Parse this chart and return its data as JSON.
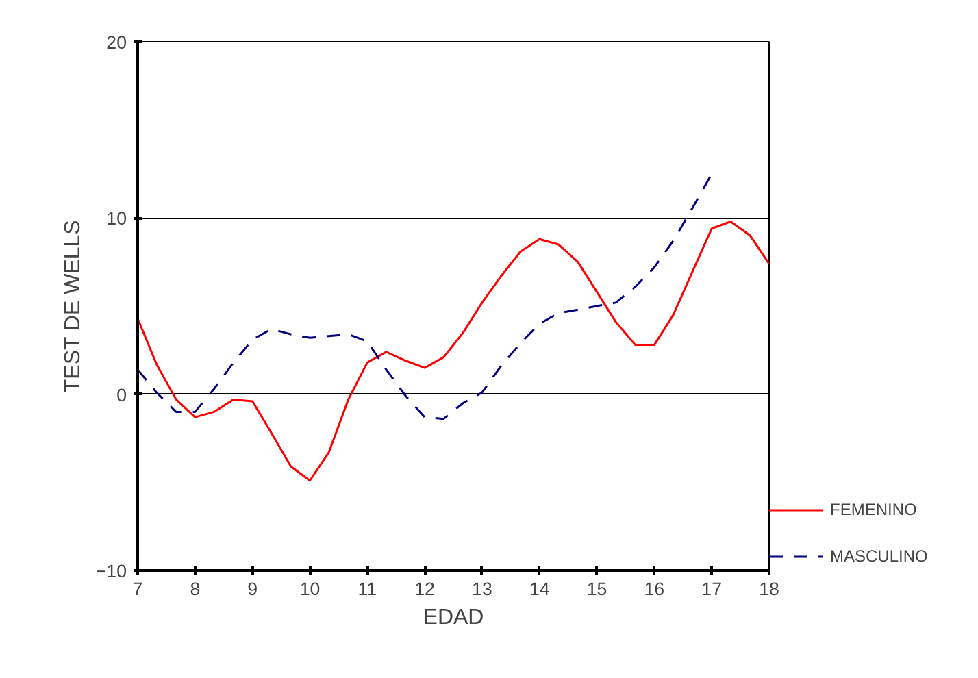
{
  "chart_data": {
    "type": "line",
    "xlabel": "EDAD",
    "ylabel": "TEST DE WELLS",
    "xlim": [
      7,
      18
    ],
    "xticks": [
      7,
      8,
      9,
      10,
      11,
      12,
      13,
      14,
      15,
      16,
      17,
      18
    ],
    "ylim": [
      -10,
      20
    ],
    "yticks": [
      -10,
      0,
      10,
      20
    ],
    "grid": "y",
    "legend": "right",
    "marker": "none",
    "series": [
      {
        "name": "FEMENINO",
        "color": "#ff0000",
        "line_style": "solid",
        "x": [
          7,
          7.33,
          7.67,
          8,
          8.33,
          8.67,
          9,
          9.33,
          9.67,
          10,
          10.33,
          10.67,
          11,
          11.33,
          11.67,
          12,
          12.33,
          12.67,
          13,
          13.33,
          13.67,
          14,
          14.33,
          14.67,
          15,
          15.33,
          15.67,
          16,
          16.33,
          16.67,
          17,
          17.33,
          17.67,
          18
        ],
        "values": [
          4.3,
          1.7,
          -0.3,
          -1.3,
          -1.0,
          -0.3,
          -0.4,
          -2.2,
          -4.1,
          -4.9,
          -3.3,
          -0.3,
          1.8,
          2.4,
          1.9,
          1.5,
          2.1,
          3.5,
          5.2,
          6.7,
          8.1,
          8.8,
          8.5,
          7.5,
          5.8,
          4.1,
          2.8,
          2.8,
          4.5,
          7.0,
          9.4,
          9.8,
          9.0,
          7.4
        ]
      },
      {
        "name": "MASCULINO",
        "color": "#000080",
        "line_style": "dashed",
        "x": [
          7,
          7.33,
          7.67,
          8,
          8.33,
          8.67,
          9,
          9.33,
          9.67,
          10,
          10.33,
          10.67,
          11,
          11.33,
          11.67,
          12,
          12.33,
          12.67,
          13,
          13.33,
          13.67,
          14,
          14.33,
          14.67,
          15,
          15.33,
          15.67,
          16,
          16.33,
          16.67,
          17
        ],
        "values": [
          1.4,
          0.1,
          -1.0,
          -1.0,
          0.3,
          1.8,
          3.1,
          3.7,
          3.4,
          3.2,
          3.3,
          3.4,
          3.0,
          1.4,
          -0.1,
          -1.3,
          -1.4,
          -0.5,
          0.1,
          1.6,
          2.9,
          4.0,
          4.6,
          4.8,
          5.0,
          5.2,
          6.1,
          7.2,
          8.7,
          10.6,
          12.5
        ]
      }
    ]
  }
}
